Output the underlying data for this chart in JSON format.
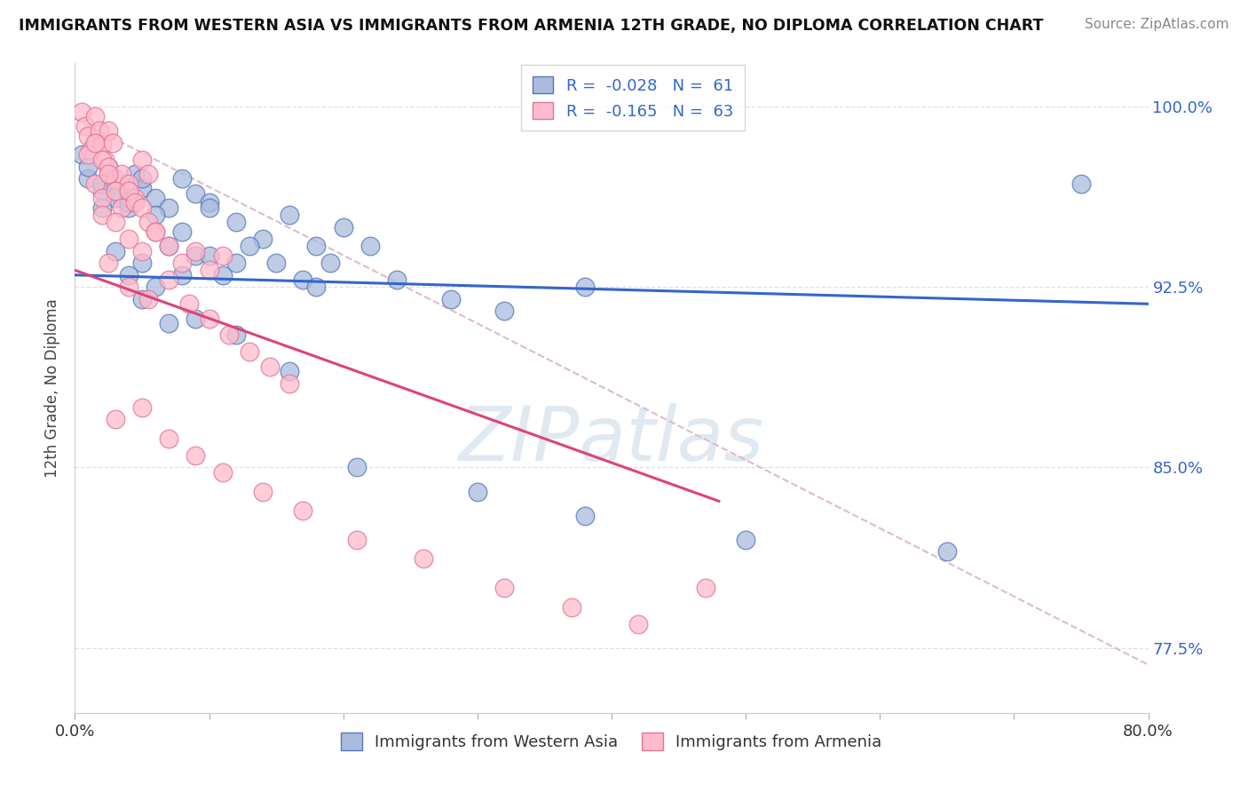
{
  "title": "IMMIGRANTS FROM WESTERN ASIA VS IMMIGRANTS FROM ARMENIA 12TH GRADE, NO DIPLOMA CORRELATION CHART",
  "source": "Source: ZipAtlas.com",
  "ylabel": "12th Grade, No Diploma",
  "xlabel_blue": "Immigrants from Western Asia",
  "xlabel_pink": "Immigrants from Armenia",
  "R_blue": -0.028,
  "N_blue": 61,
  "R_pink": -0.165,
  "N_pink": 63,
  "xmin": 0.0,
  "xmax": 0.8,
  "ymin": 0.748,
  "ymax": 1.018,
  "ytick_vals": [
    0.775,
    0.85,
    0.925,
    1.0
  ],
  "ytick_labels": [
    "77.5%",
    "85.0%",
    "92.5%",
    "100.0%"
  ],
  "xtick_vals": [
    0.0,
    0.1,
    0.2,
    0.3,
    0.4,
    0.5,
    0.6,
    0.7,
    0.8
  ],
  "xtick_show": [
    "0.0%",
    "",
    "",
    "",
    "",
    "",
    "",
    "",
    "80.0%"
  ],
  "blue_color": "#AABBDD",
  "blue_edge": "#5577BB",
  "pink_color": "#FFBBCC",
  "pink_edge": "#DD7799",
  "trend_blue_color": "#3366CC",
  "trend_pink_color": "#DD4477",
  "ref_line_color": "#DDBBCC",
  "grid_color": "#E0E0E0",
  "bg_color": "#FFFFFF",
  "watermark": "ZIPatlas",
  "blue_x": [
    0.005,
    0.01,
    0.015,
    0.02,
    0.025,
    0.03,
    0.035,
    0.04,
    0.045,
    0.05,
    0.01,
    0.02,
    0.03,
    0.04,
    0.05,
    0.06,
    0.07,
    0.08,
    0.09,
    0.1,
    0.02,
    0.04,
    0.06,
    0.08,
    0.1,
    0.12,
    0.14,
    0.16,
    0.18,
    0.2,
    0.03,
    0.05,
    0.07,
    0.09,
    0.11,
    0.13,
    0.15,
    0.17,
    0.19,
    0.22,
    0.04,
    0.06,
    0.08,
    0.1,
    0.12,
    0.18,
    0.24,
    0.28,
    0.32,
    0.38,
    0.05,
    0.07,
    0.09,
    0.12,
    0.16,
    0.21,
    0.3,
    0.38,
    0.5,
    0.65,
    0.75
  ],
  "blue_y": [
    0.98,
    0.97,
    0.985,
    0.965,
    0.975,
    0.968,
    0.962,
    0.958,
    0.972,
    0.966,
    0.975,
    0.968,
    0.962,
    0.96,
    0.97,
    0.962,
    0.958,
    0.97,
    0.964,
    0.96,
    0.958,
    0.962,
    0.955,
    0.948,
    0.958,
    0.952,
    0.945,
    0.955,
    0.942,
    0.95,
    0.94,
    0.935,
    0.942,
    0.938,
    0.93,
    0.942,
    0.935,
    0.928,
    0.935,
    0.942,
    0.93,
    0.925,
    0.93,
    0.938,
    0.935,
    0.925,
    0.928,
    0.92,
    0.915,
    0.925,
    0.92,
    0.91,
    0.912,
    0.905,
    0.89,
    0.85,
    0.84,
    0.83,
    0.82,
    0.815,
    0.968
  ],
  "pink_x": [
    0.005,
    0.008,
    0.01,
    0.012,
    0.015,
    0.018,
    0.02,
    0.022,
    0.025,
    0.028,
    0.01,
    0.015,
    0.02,
    0.025,
    0.03,
    0.035,
    0.04,
    0.045,
    0.05,
    0.055,
    0.015,
    0.02,
    0.025,
    0.03,
    0.035,
    0.04,
    0.045,
    0.05,
    0.055,
    0.06,
    0.02,
    0.03,
    0.04,
    0.05,
    0.06,
    0.07,
    0.08,
    0.09,
    0.1,
    0.11,
    0.025,
    0.04,
    0.055,
    0.07,
    0.085,
    0.1,
    0.115,
    0.13,
    0.145,
    0.16,
    0.03,
    0.05,
    0.07,
    0.09,
    0.11,
    0.14,
    0.17,
    0.21,
    0.26,
    0.32,
    0.37,
    0.42,
    0.47
  ],
  "pink_y": [
    0.998,
    0.992,
    0.988,
    0.982,
    0.996,
    0.99,
    0.984,
    0.978,
    0.99,
    0.985,
    0.98,
    0.985,
    0.978,
    0.975,
    0.97,
    0.972,
    0.968,
    0.962,
    0.978,
    0.972,
    0.968,
    0.962,
    0.972,
    0.965,
    0.958,
    0.965,
    0.96,
    0.958,
    0.952,
    0.948,
    0.955,
    0.952,
    0.945,
    0.94,
    0.948,
    0.942,
    0.935,
    0.94,
    0.932,
    0.938,
    0.935,
    0.925,
    0.92,
    0.928,
    0.918,
    0.912,
    0.905,
    0.898,
    0.892,
    0.885,
    0.87,
    0.875,
    0.862,
    0.855,
    0.848,
    0.84,
    0.832,
    0.82,
    0.812,
    0.8,
    0.792,
    0.785,
    0.8
  ]
}
